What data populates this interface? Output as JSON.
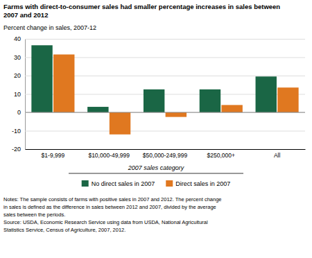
{
  "chart_data": {
    "type": "bar",
    "title": [
      "Farms with direct-to-consumer sales had smaller percentage increases in sales between",
      "2007 and 2012"
    ],
    "y_label": "Percent change in sales, 2007-12",
    "x_label": "2007 sales category",
    "categories": [
      "$1-9,999",
      "$10,000-49,999",
      "$50,000-249,999",
      "$250,000+",
      "All"
    ],
    "series": [
      {
        "name": "No direct sales in 2007",
        "color": "#1a6645",
        "values": [
          36.5,
          3.0,
          12.5,
          12.5,
          19.5
        ]
      },
      {
        "name": "Direct sales in 2007",
        "color": "#e07820",
        "values": [
          31.5,
          -12.0,
          -2.5,
          4.0,
          13.5
        ]
      }
    ],
    "ylim": [
      -20,
      40
    ],
    "yticks": [
      -20,
      -10,
      0,
      10,
      20,
      30,
      40
    ],
    "grid": true,
    "legend": "bottom",
    "annotations": [
      "Notes: The sample consists of farms with positive sales in 2007 and 2012. The percent change",
      "in sales is defined as the difference in sales between 2012 and 2007, divided by the average",
      "sales between the periods.",
      "Source: USDA, Economic Research Service using data from USDA, National Agricultural",
      "Statistics Service, Census of Agriculture, 2007, 2012."
    ]
  }
}
